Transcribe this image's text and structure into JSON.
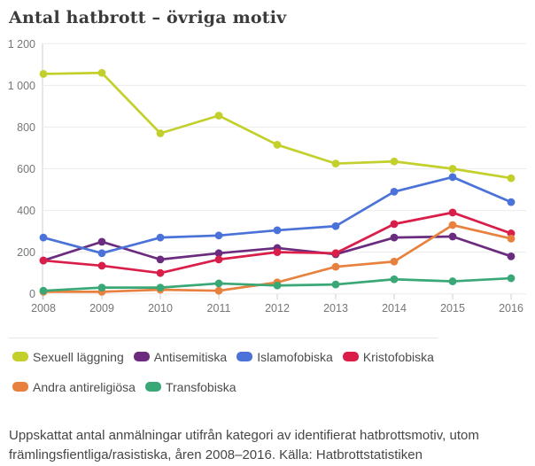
{
  "title": "Antal hatbrott – övriga motiv",
  "caption": "Uppskattat antal anmälningar utifrån kategori av identifierat hatbrottsmotiv, utom främlingsfientliga/rasistiska, åren 2008–2016. Källa: Hatbrottstatistiken",
  "colors": {
    "grid": "#ececec",
    "axis": "#cfcfcf",
    "axis_text": "#767676",
    "title_text": "#3b3b3b",
    "legend_text": "#4c4c4c",
    "caption_text": "#464646"
  },
  "chart_data": {
    "type": "line",
    "title": "Antal hatbrott – övriga motiv",
    "x": [
      "2008",
      "2009",
      "2010",
      "2011",
      "2012",
      "2013",
      "2014",
      "2015",
      "2016"
    ],
    "series": [
      {
        "name": "Sexuell läggning",
        "color": "#c3d02c",
        "values": [
          1055,
          1060,
          770,
          855,
          715,
          625,
          635,
          600,
          555
        ]
      },
      {
        "name": "Antisemitiska",
        "color": "#6b2c7f",
        "values": [
          160,
          250,
          165,
          195,
          220,
          190,
          270,
          275,
          180
        ]
      },
      {
        "name": "Islamofobiska",
        "color": "#4a72d8",
        "values": [
          270,
          195,
          270,
          280,
          305,
          325,
          490,
          560,
          440
        ]
      },
      {
        "name": "Kristofobiska",
        "color": "#d91e4a",
        "values": [
          160,
          135,
          100,
          165,
          200,
          195,
          335,
          390,
          290
        ]
      },
      {
        "name": "Andra antireligiösa",
        "color": "#e8813e",
        "values": [
          10,
          10,
          20,
          15,
          55,
          130,
          155,
          330,
          265
        ]
      },
      {
        "name": "Transfobiska",
        "color": "#3aa876",
        "values": [
          15,
          30,
          30,
          50,
          40,
          45,
          70,
          60,
          75
        ]
      }
    ],
    "ylim": [
      0,
      1200
    ],
    "y_tick_step": 200,
    "y_tick_labels": [
      "0",
      "200",
      "400",
      "600",
      "800",
      "1 000",
      "1 200"
    ],
    "grid": true,
    "legend_position": "bottom"
  }
}
